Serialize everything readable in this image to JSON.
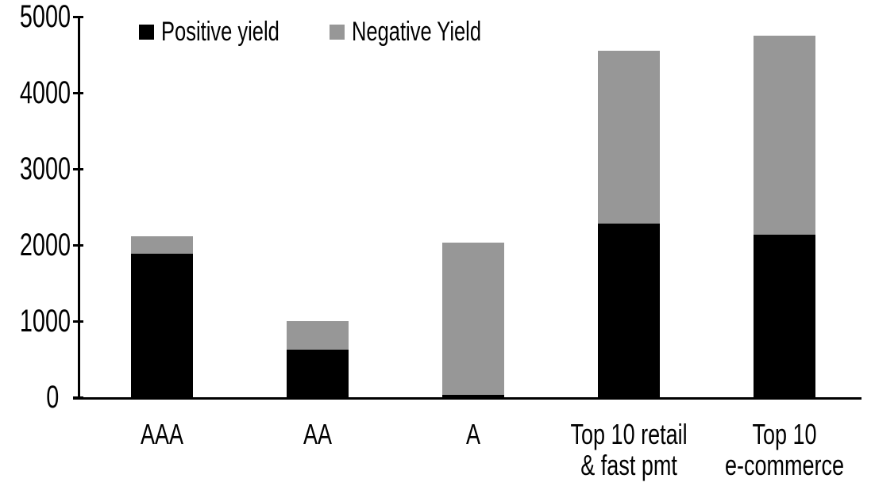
{
  "chart_data": {
    "type": "bar",
    "stacked": true,
    "title": "",
    "categories": [
      [
        "AAA"
      ],
      [
        "AA"
      ],
      [
        "A"
      ],
      [
        "Top 10 retail",
        "& fast pmt"
      ],
      [
        "Top 10",
        "e-commerce"
      ]
    ],
    "series": [
      {
        "name": "Positive yield",
        "color": "#000000",
        "values": [
          1890,
          620,
          30,
          2280,
          2140
        ]
      },
      {
        "name": "Negative Yield",
        "color": "#979797",
        "values": [
          220,
          380,
          2000,
          2270,
          2610
        ]
      }
    ],
    "totals": [
      2110,
      1000,
      2030,
      4550,
      4750
    ],
    "ylim": [
      0,
      5000
    ],
    "ytick_labels": [
      "0",
      "1000",
      "2000",
      "3000",
      "4000",
      "5000"
    ],
    "ytick_values": [
      0,
      1000,
      2000,
      3000,
      4000,
      5000
    ],
    "legend_position": "top-left",
    "grid": false,
    "axis_color": "#000000",
    "background_color": "#ffffff"
  }
}
